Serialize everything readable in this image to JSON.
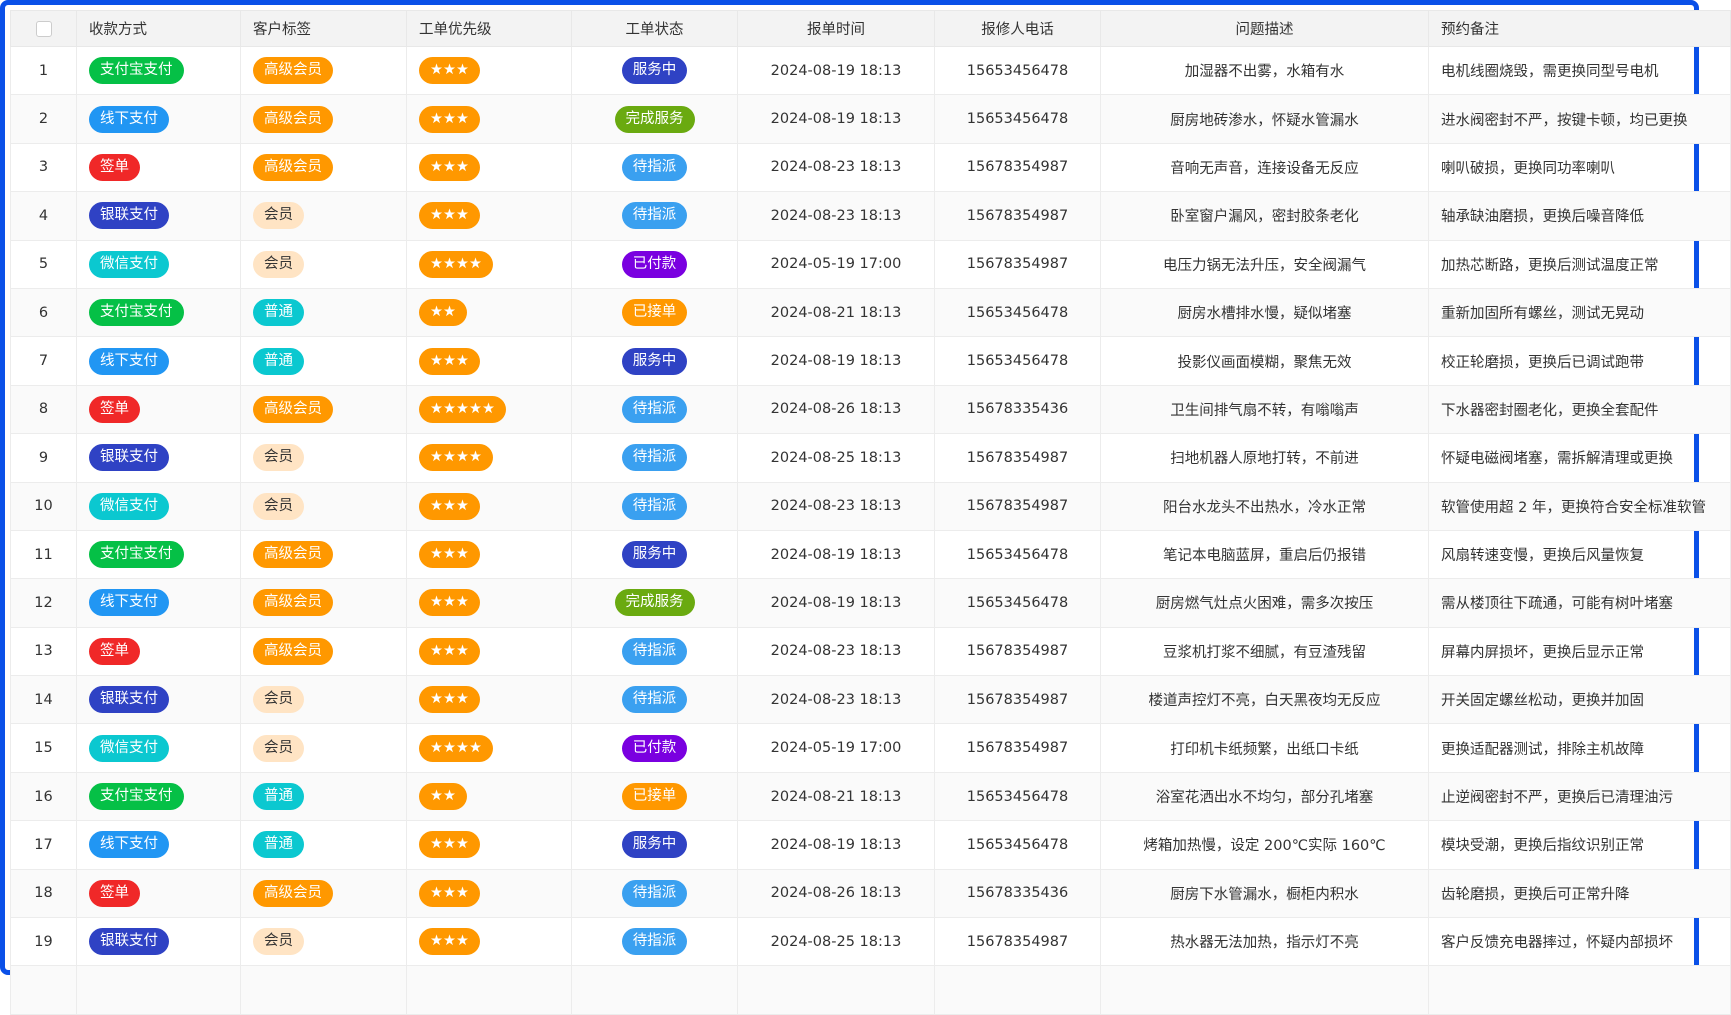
{
  "headers": {
    "pay": "收款方式",
    "tag": "客户标签",
    "priority": "工单优先级",
    "status": "工单状态",
    "time": "报单时间",
    "phone": "报修人电话",
    "desc": "问题描述",
    "note": "预约备注"
  },
  "colors": {
    "支付宝支付": "#05c046",
    "线下支付": "#2196f3",
    "签单": "#f02828",
    "银联支付": "#2f42c4",
    "微信支付": "#0bc8d0",
    "高级会员": "#ff9800",
    "会员": "#ffe4c4",
    "普通": "#0bc8d0",
    "priority": "#ff9800",
    "服务中": "#2f42c4",
    "完成服务": "#6aaa10",
    "待指派": "#3aa0f0",
    "已付款": "#7a00e0",
    "已接单": "#ff9800",
    "frame": "#0a50e8"
  },
  "rows": [
    {
      "no": "1",
      "pay": "支付宝支付",
      "tag": "高级会员",
      "priority": "★★★",
      "status": "服务中",
      "time": "2024-08-19 18:13",
      "phone": "15653456478",
      "desc": "加湿器不出雾，水箱有水",
      "note": "电机线圈烧毁，需更换同型号电机"
    },
    {
      "no": "2",
      "pay": "线下支付",
      "tag": "高级会员",
      "priority": "★★★",
      "status": "完成服务",
      "time": "2024-08-19 18:13",
      "phone": "15653456478",
      "desc": "厨房地砖渗水，怀疑水管漏水",
      "note": "进水阀密封不严，按键卡顿，均已更换"
    },
    {
      "no": "3",
      "pay": "签单",
      "tag": "高级会员",
      "priority": "★★★",
      "status": "待指派",
      "time": "2024-08-23 18:13",
      "phone": "15678354987",
      "desc": "音响无声音，连接设备无反应",
      "note": "喇叭破损，更换同功率喇叭"
    },
    {
      "no": "4",
      "pay": "银联支付",
      "tag": "会员",
      "priority": "★★★",
      "status": "待指派",
      "time": "2024-08-23 18:13",
      "phone": "15678354987",
      "desc": "卧室窗户漏风，密封胶条老化",
      "note": "轴承缺油磨损，更换后噪音降低"
    },
    {
      "no": "5",
      "pay": "微信支付",
      "tag": "会员",
      "priority": "★★★★",
      "status": "已付款",
      "time": "2024-05-19 17:00",
      "phone": "15678354987",
      "desc": "电压力锅无法升压，安全阀漏气",
      "note": "加热芯断路，更换后测试温度正常"
    },
    {
      "no": "6",
      "pay": "支付宝支付",
      "tag": "普通",
      "priority": "★★",
      "status": "已接单",
      "time": "2024-08-21 18:13",
      "phone": "15653456478",
      "desc": "厨房水槽排水慢，疑似堵塞",
      "note": "重新加固所有螺丝，测试无晃动"
    },
    {
      "no": "7",
      "pay": "线下支付",
      "tag": "普通",
      "priority": "★★★",
      "status": "服务中",
      "time": "2024-08-19 18:13",
      "phone": "15653456478",
      "desc": "投影仪画面模糊，聚焦无效",
      "note": "校正轮磨损，更换后已调试跑带"
    },
    {
      "no": "8",
      "pay": "签单",
      "tag": "高级会员",
      "priority": "★★★★★",
      "status": "待指派",
      "time": "2024-08-26 18:13",
      "phone": "15678335436",
      "desc": "卫生间排气扇不转，有嗡嗡声",
      "note": "下水器密封圈老化，更换全套配件"
    },
    {
      "no": "9",
      "pay": "银联支付",
      "tag": "会员",
      "priority": "★★★★",
      "status": "待指派",
      "time": "2024-08-25 18:13",
      "phone": "15678354987",
      "desc": "扫地机器人原地打转，不前进",
      "note": "怀疑电磁阀堵塞，需拆解清理或更换"
    },
    {
      "no": "10",
      "pay": "微信支付",
      "tag": "会员",
      "priority": "★★★",
      "status": "待指派",
      "time": "2024-08-23 18:13",
      "phone": "15678354987",
      "desc": "阳台水龙头不出热水，冷水正常",
      "note": "软管使用超 2 年，更换符合安全标准软管"
    },
    {
      "no": "11",
      "pay": "支付宝支付",
      "tag": "高级会员",
      "priority": "★★★",
      "status": "服务中",
      "time": "2024-08-19 18:13",
      "phone": "15653456478",
      "desc": "笔记本电脑蓝屏，重启后仍报错",
      "note": "风扇转速变慢，更换后风量恢复"
    },
    {
      "no": "12",
      "pay": "线下支付",
      "tag": "高级会员",
      "priority": "★★★",
      "status": "完成服务",
      "time": "2024-08-19 18:13",
      "phone": "15653456478",
      "desc": "厨房燃气灶点火困难，需多次按压",
      "note": "需从楼顶往下疏通，可能有树叶堵塞"
    },
    {
      "no": "13",
      "pay": "签单",
      "tag": "高级会员",
      "priority": "★★★",
      "status": "待指派",
      "time": "2024-08-23 18:13",
      "phone": "15678354987",
      "desc": "豆浆机打浆不细腻，有豆渣残留",
      "note": "屏幕内屏损坏，更换后显示正常"
    },
    {
      "no": "14",
      "pay": "银联支付",
      "tag": "会员",
      "priority": "★★★",
      "status": "待指派",
      "time": "2024-08-23 18:13",
      "phone": "15678354987",
      "desc": "楼道声控灯不亮，白天黑夜均无反应",
      "note": "开关固定螺丝松动，更换并加固"
    },
    {
      "no": "15",
      "pay": "微信支付",
      "tag": "会员",
      "priority": "★★★★",
      "status": "已付款",
      "time": "2024-05-19 17:00",
      "phone": "15678354987",
      "desc": "打印机卡纸频繁，出纸口卡纸",
      "note": "更换适配器测试，排除主机故障"
    },
    {
      "no": "16",
      "pay": "支付宝支付",
      "tag": "普通",
      "priority": "★★",
      "status": "已接单",
      "time": "2024-08-21 18:13",
      "phone": "15653456478",
      "desc": "浴室花洒出水不均匀，部分孔堵塞",
      "note": "止逆阀密封不严，更换后已清理油污"
    },
    {
      "no": "17",
      "pay": "线下支付",
      "tag": "普通",
      "priority": "★★★",
      "status": "服务中",
      "time": "2024-08-19 18:13",
      "phone": "15653456478",
      "desc": "烤箱加热慢，设定 200℃实际 160℃",
      "note": "模块受潮，更换后指纹识别正常"
    },
    {
      "no": "18",
      "pay": "签单",
      "tag": "高级会员",
      "priority": "★★★",
      "status": "待指派",
      "time": "2024-08-26 18:13",
      "phone": "15678335436",
      "desc": "厨房下水管漏水，橱柜内积水",
      "note": "齿轮磨损，更换后可正常升降"
    },
    {
      "no": "19",
      "pay": "银联支付",
      "tag": "会员",
      "priority": "★★★",
      "status": "待指派",
      "time": "2024-08-25 18:13",
      "phone": "15678354987",
      "desc": "热水器无法加热，指示灯不亮",
      "note": "客户反馈充电器摔过，怀疑内部损坏"
    }
  ]
}
